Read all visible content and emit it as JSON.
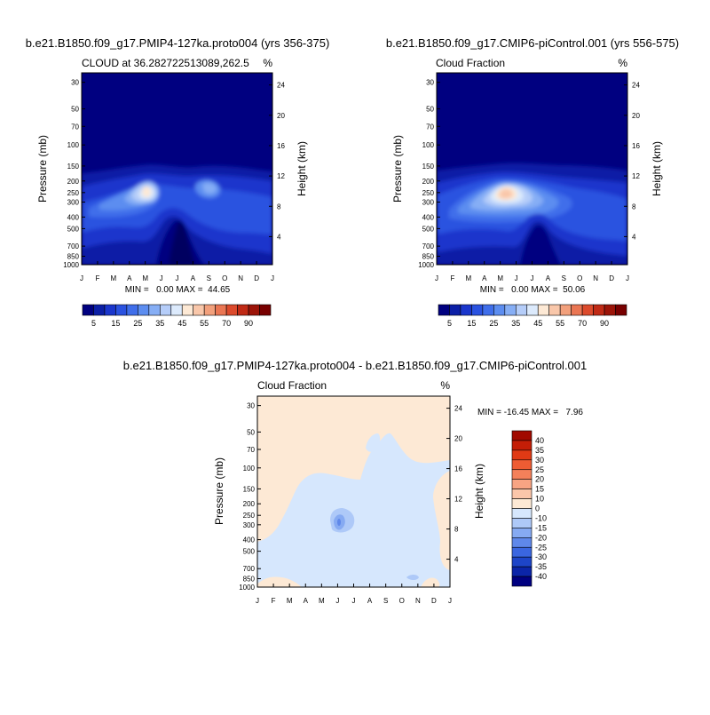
{
  "panels": [
    {
      "title": "b.e21.B1850.f09_g17.PMIP4-127ka.proto004 (yrs 356-375)",
      "subtitle_left": "CLOUD at 36.282722513089,262.5",
      "subtitle_right": "%",
      "stats": "MIN =   0.00 MAX =  44.65"
    },
    {
      "title": "b.e21.B1850.f09_g17.CMIP6-piControl.001 (yrs 556-575)",
      "subtitle_left": "Cloud Fraction",
      "subtitle_right": "%",
      "stats": "MIN =   0.00 MAX =  50.06"
    },
    {
      "title": "b.e21.B1850.f09_g17.PMIP4-127ka.proto004 - b.e21.B1850.f09_g17.CMIP6-piControl.001",
      "subtitle_left": "Cloud Fraction",
      "subtitle_right": "%",
      "stats": "MIN = -16.45 MAX =   7.96"
    }
  ],
  "axes": {
    "ylabel_left": "Pressure (mb)",
    "ylabel_right": "Height (km)",
    "pressure_ticks": [
      "30",
      "50",
      "70",
      "100",
      "150",
      "200",
      "250",
      "300",
      "400",
      "500",
      "700",
      "850",
      "1000"
    ],
    "height_ticks": [
      "24",
      "20",
      "16",
      "12",
      "8",
      "4"
    ],
    "month_ticks": [
      "J",
      "F",
      "M",
      "A",
      "M",
      "J",
      "J",
      "A",
      "S",
      "O",
      "N",
      "D",
      "J"
    ]
  },
  "colorbar_top": {
    "labels": [
      "5",
      "15",
      "25",
      "35",
      "45",
      "55",
      "70",
      "90"
    ],
    "colors": [
      "#000080",
      "#0b1fa6",
      "#1a36cc",
      "#2a52e0",
      "#3f6eea",
      "#5c8df0",
      "#86aef5",
      "#b5cdf9",
      "#dceafc",
      "#fde9d5",
      "#f9c7aa",
      "#f2a07c",
      "#ea7653",
      "#dc4a2c",
      "#c02a15",
      "#9c1408",
      "#780000"
    ]
  },
  "colorbar_diff": {
    "labels": [
      "40",
      "35",
      "30",
      "25",
      "20",
      "15",
      "10",
      "0",
      "-10",
      "-15",
      "-20",
      "-25",
      "-30",
      "-35",
      "-40"
    ],
    "colors": [
      "#a10a00",
      "#c41e07",
      "#e03a15",
      "#ee5c33",
      "#f4805a",
      "#f8a483",
      "#fbc6aa",
      "#fde9d5",
      "#d6e7fd",
      "#aec9f8",
      "#86aaf2",
      "#5f88ea",
      "#3a66e0",
      "#1d45c8",
      "#0b25a8",
      "#000080"
    ]
  },
  "chart_data": [
    {
      "type": "heatmap",
      "title": "b.e21.B1850.f09_g17.PMIP4-127ka.proto004 (yrs 356-375)",
      "xlabel": "",
      "ylabel": "Pressure (mb)",
      "y2label": "Height (km)",
      "x_ticks": [
        "J",
        "F",
        "M",
        "A",
        "M",
        "J",
        "J",
        "A",
        "S",
        "O",
        "N",
        "D",
        "J"
      ],
      "y_ticks_pressure_mb": [
        30,
        50,
        70,
        100,
        150,
        200,
        250,
        300,
        400,
        500,
        700,
        850,
        1000
      ],
      "y_ticks_height_km": [
        24,
        20,
        16,
        12,
        8,
        4
      ],
      "y_scale": "log",
      "ylim": [
        1000,
        25
      ],
      "min": 0.0,
      "max": 44.65,
      "levels": [
        5,
        10,
        15,
        20,
        25,
        30,
        35,
        40,
        45,
        50,
        55,
        60,
        70,
        80,
        90
      ]
    },
    {
      "type": "heatmap",
      "title": "b.e21.B1850.f09_g17.CMIP6-piControl.001 (yrs 556-575)",
      "xlabel": "",
      "ylabel": "Pressure (mb)",
      "y2label": "Height (km)",
      "x_ticks": [
        "J",
        "F",
        "M",
        "A",
        "M",
        "J",
        "J",
        "A",
        "S",
        "O",
        "N",
        "D",
        "J"
      ],
      "y_ticks_pressure_mb": [
        30,
        50,
        70,
        100,
        150,
        200,
        250,
        300,
        400,
        500,
        700,
        850,
        1000
      ],
      "y_ticks_height_km": [
        24,
        20,
        16,
        12,
        8,
        4
      ],
      "y_scale": "log",
      "ylim": [
        1000,
        25
      ],
      "min": 0.0,
      "max": 50.06,
      "levels": [
        5,
        10,
        15,
        20,
        25,
        30,
        35,
        40,
        45,
        50,
        55,
        60,
        70,
        80,
        90
      ]
    },
    {
      "type": "heatmap",
      "title": "b.e21.B1850.f09_g17.PMIP4-127ka.proto004 - b.e21.B1850.f09_g17.CMIP6-piControl.001",
      "xlabel": "",
      "ylabel": "Pressure (mb)",
      "y2label": "Height (km)",
      "x_ticks": [
        "J",
        "F",
        "M",
        "A",
        "M",
        "J",
        "J",
        "A",
        "S",
        "O",
        "N",
        "D",
        "J"
      ],
      "y_ticks_pressure_mb": [
        30,
        50,
        70,
        100,
        150,
        200,
        250,
        300,
        400,
        500,
        700,
        850,
        1000
      ],
      "y_ticks_height_km": [
        24,
        20,
        16,
        12,
        8,
        4
      ],
      "y_scale": "log",
      "ylim": [
        1000,
        25
      ],
      "min": -16.45,
      "max": 7.96,
      "levels": [
        -40,
        -35,
        -30,
        -25,
        -20,
        -15,
        -10,
        0,
        10,
        15,
        20,
        25,
        30,
        35,
        40
      ]
    }
  ]
}
